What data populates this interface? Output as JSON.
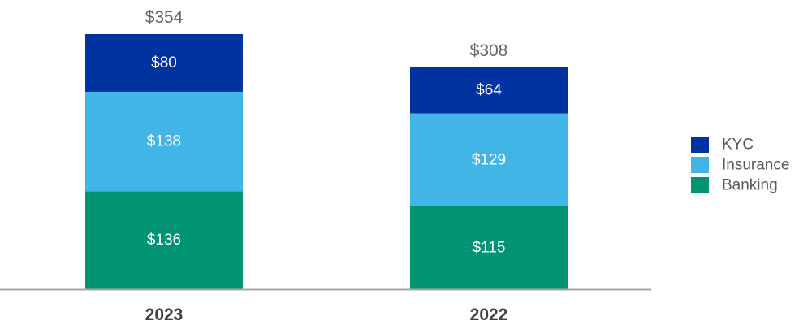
{
  "chart_data": {
    "type": "bar",
    "stacked": true,
    "categories": [
      "2023",
      "2022"
    ],
    "category_labels": [
      "2023",
      "2022"
    ],
    "series": [
      {
        "name": "Banking",
        "values": [
          136,
          115
        ],
        "labels": [
          "$136",
          "$115"
        ],
        "color": "#009473"
      },
      {
        "name": "Insurance",
        "values": [
          138,
          129
        ],
        "labels": [
          "$138",
          "$129"
        ],
        "color": "#41b6e6"
      },
      {
        "name": "KYC",
        "values": [
          80,
          64
        ],
        "labels": [
          "$80",
          "$64"
        ],
        "color": "#0033a0"
      }
    ],
    "totals": [
      354,
      308
    ],
    "total_labels": [
      "$354",
      "$308"
    ],
    "legend": {
      "position": "right",
      "items": [
        {
          "name": "KYC",
          "color": "#0033a0"
        },
        {
          "name": "Insurance",
          "color": "#41b6e6"
        },
        {
          "name": "Banking",
          "color": "#009473"
        }
      ]
    },
    "axis_color": "#a6a6a6",
    "ylim": [
      0,
      354
    ],
    "grid": false,
    "title": "",
    "xlabel": "",
    "ylabel": ""
  }
}
